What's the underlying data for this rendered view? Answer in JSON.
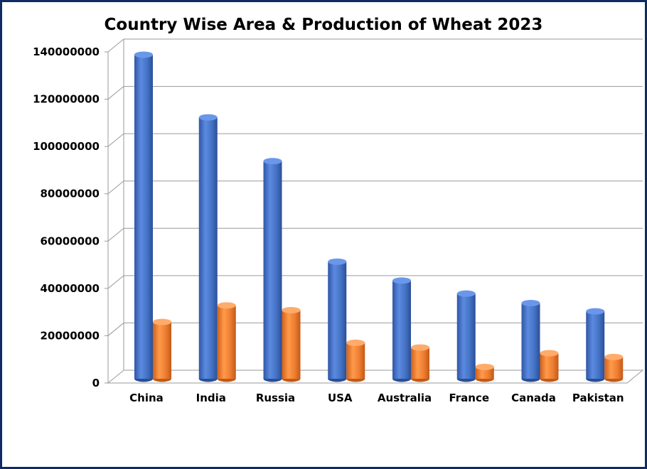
{
  "chart_data": {
    "type": "bar",
    "title": "Country Wise Area & Production of Wheat 2023",
    "categories": [
      "China",
      "India",
      "Russia",
      "USA",
      "Australia",
      "France",
      "Canada",
      "Pakistan"
    ],
    "series": [
      {
        "values": [
          137000000,
          110500000,
          92000000,
          49500000,
          41500000,
          36000000,
          32000000,
          28500000
        ]
      },
      {
        "values": [
          24000000,
          31000000,
          29000000,
          15200000,
          13200000,
          5000000,
          10800000,
          9200000
        ]
      }
    ],
    "ylim": [
      0,
      140000000
    ],
    "yticks": [
      0,
      20000000,
      40000000,
      60000000,
      80000000,
      100000000,
      120000000,
      140000000
    ],
    "grid": true,
    "legend": "none",
    "colors": {
      "series1": "#4472c4",
      "series2": "#ed7d31"
    }
  }
}
